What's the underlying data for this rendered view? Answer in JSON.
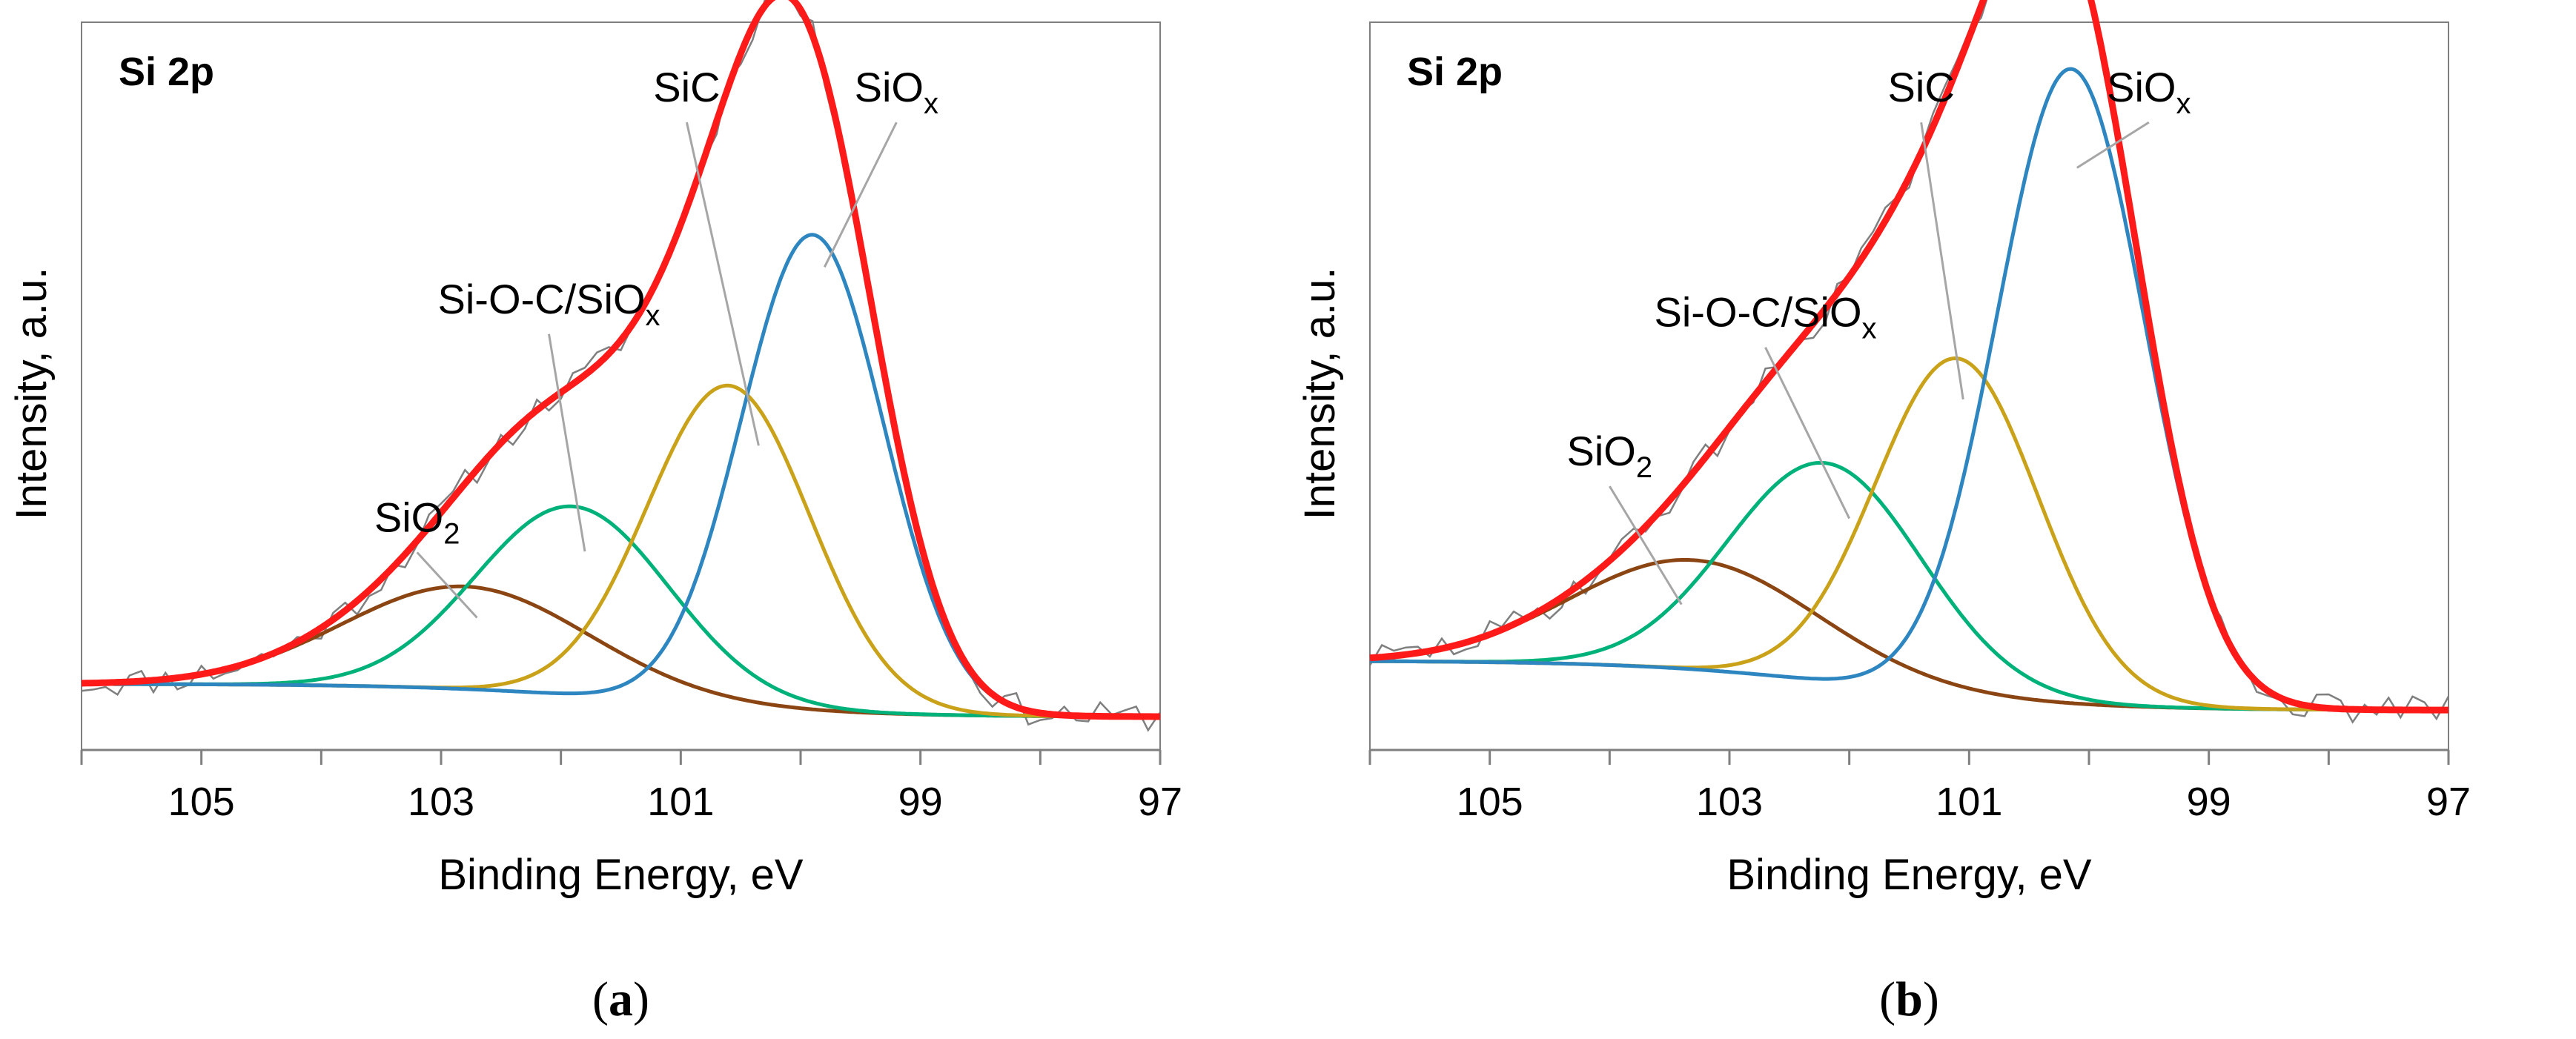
{
  "figure": {
    "panels": [
      "a",
      "b"
    ]
  },
  "chart_data": [
    {
      "type": "line",
      "panel_caption": {
        "open": "(",
        "letter": "a",
        "close": ")"
      },
      "title": "Si 2p",
      "xlabel": "Binding Energy, eV",
      "ylabel": "Intensity, a.u.",
      "xlim": [
        106,
        97
      ],
      "x_reversed": true,
      "xticks": [
        105,
        103,
        101,
        99,
        97
      ],
      "ylim": [
        0,
        1.1
      ],
      "baseline": {
        "high_be": 0.1,
        "low_be": 0.05,
        "center": 101.3,
        "width": 0.9
      },
      "noise_seed": 11,
      "noise_amp": 0.022,
      "components": [
        {
          "name": "SiO2",
          "base": "SiO",
          "sub": "2",
          "center": 102.8,
          "fwhm": 2.4,
          "height": 0.155,
          "color": "#8B4513"
        },
        {
          "name": "Si-O-C/SiOx",
          "base": "Si-O-C/SiO",
          "sub": "x",
          "center": 101.9,
          "fwhm": 1.9,
          "height": 0.285,
          "color": "#00B27A"
        },
        {
          "name": "SiC",
          "base": "SiC",
          "sub": "",
          "center": 100.6,
          "fwhm": 1.6,
          "height": 0.485,
          "color": "#C9A21A"
        },
        {
          "name": "SiOx",
          "base": "SiO",
          "sub": "x",
          "center": 99.9,
          "fwhm": 1.4,
          "height": 0.72,
          "color": "#2E86C1"
        }
      ],
      "envelope_color": "#FF1A1A",
      "raw_color": "#7F7F7F",
      "annotations": [
        {
          "label_base": "SiO",
          "label_sub": "2",
          "label_x": 103.2,
          "label_y": 0.33,
          "point_x": 102.7,
          "point_y": 0.2
        },
        {
          "label_base": "Si-O-C/SiO",
          "label_sub": "x",
          "label_x": 102.1,
          "label_y": 0.66,
          "point_x": 101.8,
          "point_y": 0.3
        },
        {
          "label_base": "SiC",
          "label_sub": "",
          "label_x": 100.95,
          "label_y": 0.98,
          "point_x": 100.35,
          "point_y": 0.46
        },
        {
          "label_base": "SiO",
          "label_sub": "x",
          "label_x": 99.2,
          "label_y": 0.98,
          "point_x": 99.8,
          "point_y": 0.73
        }
      ]
    },
    {
      "type": "line",
      "panel_caption": {
        "open": "(",
        "letter": "b",
        "close": ")"
      },
      "title": "Si 2p",
      "xlabel": "Binding Energy, eV",
      "ylabel": "Intensity, a.u.",
      "xlim": [
        106,
        97
      ],
      "x_reversed": true,
      "xticks": [
        105,
        103,
        101,
        99,
        97
      ],
      "ylim": [
        0,
        1.1
      ],
      "baseline": {
        "high_be": 0.135,
        "low_be": 0.06,
        "center": 101.9,
        "width": 0.9
      },
      "noise_seed": 29,
      "noise_amp": 0.022,
      "components": [
        {
          "name": "SiO2",
          "base": "SiO",
          "sub": "2",
          "center": 103.3,
          "fwhm": 2.4,
          "height": 0.165,
          "color": "#8B4513"
        },
        {
          "name": "Si-O-C/SiOx",
          "base": "Si-O-C/SiO",
          "sub": "x",
          "center": 102.2,
          "fwhm": 1.9,
          "height": 0.33,
          "color": "#00B27A"
        },
        {
          "name": "SiC",
          "base": "SiC",
          "sub": "",
          "center": 101.1,
          "fwhm": 1.6,
          "height": 0.51,
          "color": "#C9A21A"
        },
        {
          "name": "SiOx",
          "base": "SiO",
          "sub": "x",
          "center": 100.15,
          "fwhm": 1.45,
          "height": 0.96,
          "color": "#2E86C1"
        }
      ],
      "envelope_color": "#FF1A1A",
      "raw_color": "#7F7F7F",
      "annotations": [
        {
          "label_base": "SiO",
          "label_sub": "2",
          "label_x": 104.0,
          "label_y": 0.43,
          "point_x": 103.4,
          "point_y": 0.22
        },
        {
          "label_base": "Si-O-C/SiO",
          "label_sub": "x",
          "label_x": 102.7,
          "label_y": 0.64,
          "point_x": 102.0,
          "point_y": 0.35
        },
        {
          "label_base": "SiC",
          "label_sub": "",
          "label_x": 101.4,
          "label_y": 0.98,
          "point_x": 101.05,
          "point_y": 0.53
        },
        {
          "label_base": "SiO",
          "label_sub": "x",
          "label_x": 99.5,
          "label_y": 0.98,
          "point_x": 100.1,
          "point_y": 0.88
        }
      ]
    }
  ]
}
